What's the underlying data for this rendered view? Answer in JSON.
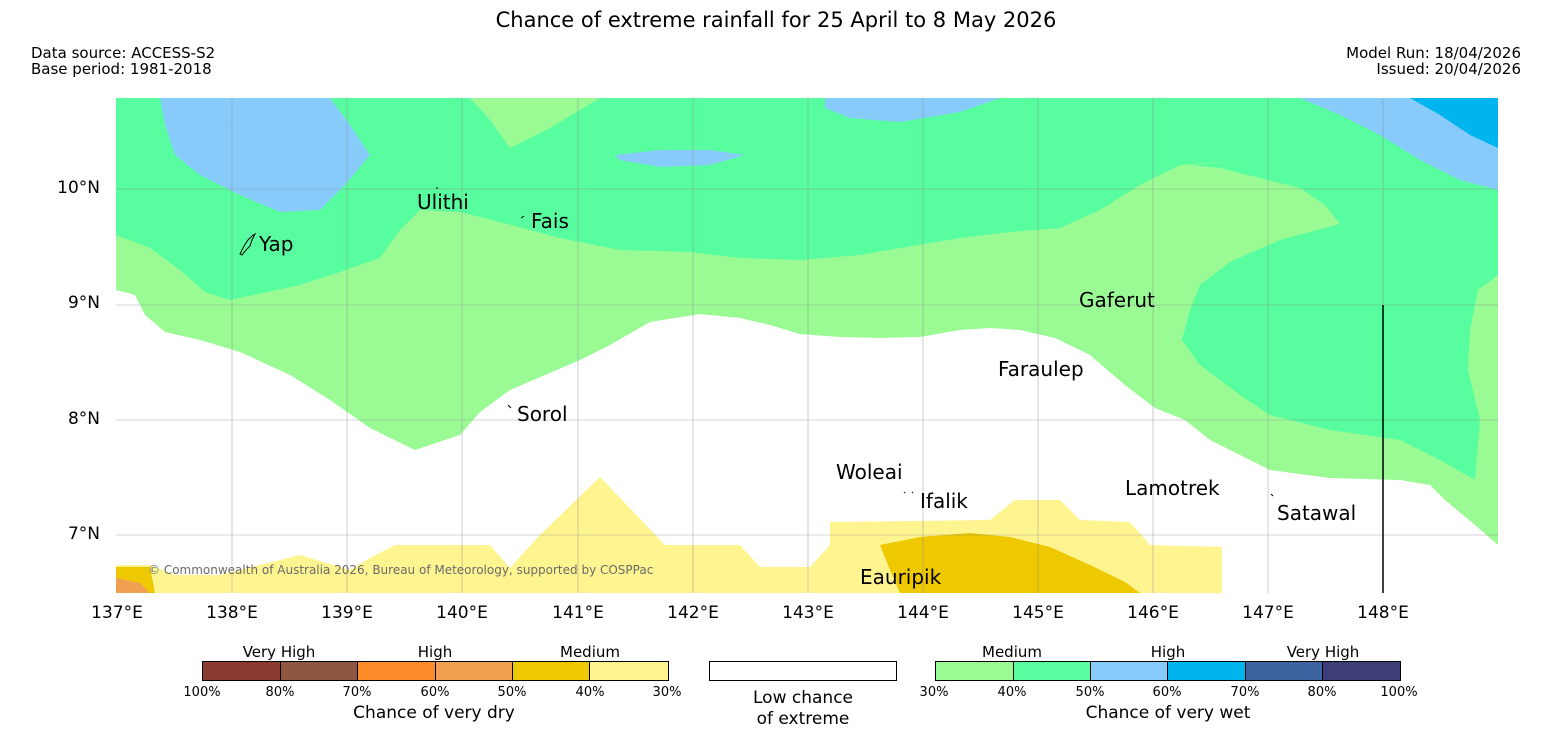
{
  "header": {
    "title": "Chance of extreme rainfall for 25 April to 8 May 2026",
    "data_source": "Data source: ACCESS-S2",
    "base_period": "Base period: 1981-2018",
    "model_run": "Model Run: 18/04/2026",
    "issued": "Issued: 20/04/2026"
  },
  "map": {
    "lat_labels": [
      "10°N",
      "9°N",
      "8°N",
      "7°N"
    ],
    "lon_labels": [
      "137°E",
      "138°E",
      "139°E",
      "140°E",
      "141°E",
      "142°E",
      "143°E",
      "144°E",
      "145°E",
      "146°E",
      "147°E",
      "148°E"
    ],
    "places": [
      "Yap",
      "Ulithi",
      "Fais",
      "Gaferut",
      "Faraulep",
      "Sorol",
      "Woleai",
      "Ifalik",
      "Lamotrek",
      "Satawal",
      "Eauripik"
    ],
    "copyright": "© Commonwealth of Australia 2026, Bureau of Meteorology, supported by COSPPac"
  },
  "legend": {
    "dry": {
      "categories": [
        "Very High",
        "High",
        "Medium"
      ],
      "ticks": [
        "100%",
        "80%",
        "70%",
        "60%",
        "50%",
        "40%",
        "30%"
      ],
      "caption": "Chance of very dry",
      "colors": [
        "#8b3a32",
        "#8f5640",
        "#ff8a2a",
        "#f0a050",
        "#eec800",
        "#fff590"
      ]
    },
    "low": {
      "caption_line1": "Low chance",
      "caption_line2": "of extreme",
      "color": "#ffffff"
    },
    "wet": {
      "categories": [
        "Medium",
        "High",
        "Very High"
      ],
      "ticks": [
        "30%",
        "40%",
        "50%",
        "60%",
        "70%",
        "80%",
        "100%"
      ],
      "caption": "Chance of very wet",
      "colors": [
        "#9afb95",
        "#57fd9e",
        "#87cbfb",
        "#00b4ee",
        "#3d64a0",
        "#3d3d78"
      ]
    }
  }
}
